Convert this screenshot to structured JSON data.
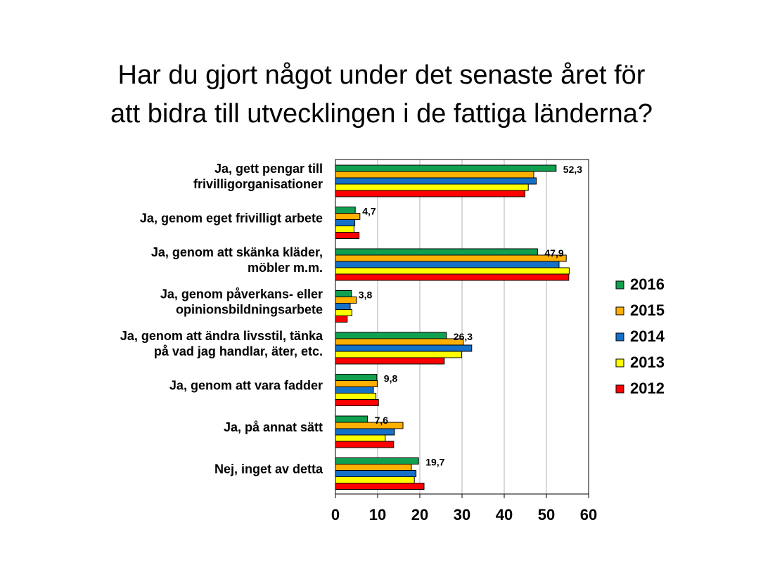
{
  "title": {
    "line1": "Har du gjort något under det senaste året för",
    "line2": "att bidra till utvecklingen i de fattiga länderna?"
  },
  "chart_data": {
    "type": "bar",
    "orientation": "horizontal",
    "categories": [
      [
        "Ja, gett pengar till",
        "frivilligorganisationer"
      ],
      [
        "Ja, genom eget frivilligt arbete"
      ],
      [
        "Ja, genom att skänka kläder,",
        "möbler m.m."
      ],
      [
        "Ja, genom påverkans- eller",
        "opinionsbildningsarbete"
      ],
      [
        "Ja, genom att ändra livsstil, tänka",
        "på vad jag handlar, äter, etc."
      ],
      [
        "Ja, genom att vara fadder"
      ],
      [
        "Ja, på annat sätt"
      ],
      [
        "Nej, inget av detta"
      ]
    ],
    "series": [
      {
        "name": "2016",
        "color": "#10A050",
        "values": [
          52.3,
          4.7,
          47.9,
          3.8,
          26.3,
          9.8,
          7.6,
          19.7
        ]
      },
      {
        "name": "2015",
        "color": "#FFB000",
        "values": [
          47.0,
          5.8,
          54.7,
          5.0,
          30.3,
          9.9,
          16.0,
          18.0
        ]
      },
      {
        "name": "2014",
        "color": "#1570C8",
        "values": [
          47.6,
          4.6,
          53.0,
          3.5,
          32.3,
          9.0,
          14.0,
          19.1
        ]
      },
      {
        "name": "2013",
        "color": "#FFFF00",
        "values": [
          45.7,
          4.4,
          55.4,
          3.9,
          29.9,
          9.6,
          11.8,
          18.7
        ]
      },
      {
        "name": "2012",
        "color": "#FF0000",
        "values": [
          44.9,
          5.6,
          55.3,
          2.8,
          25.8,
          10.2,
          13.8,
          21.0
        ]
      }
    ],
    "data_labels_series": "2016",
    "data_labels": [
      "52,3",
      "4,7",
      "47,9",
      "3,8",
      "26,3",
      "9,8",
      "7,6",
      "19,7"
    ],
    "xlim": [
      0,
      60
    ],
    "xticks": [
      "0",
      "10",
      "20",
      "30",
      "40",
      "50",
      "60"
    ],
    "grid": true,
    "legend_position": "right",
    "legend_order": [
      "2016",
      "2015",
      "2014",
      "2013",
      "2012"
    ]
  }
}
